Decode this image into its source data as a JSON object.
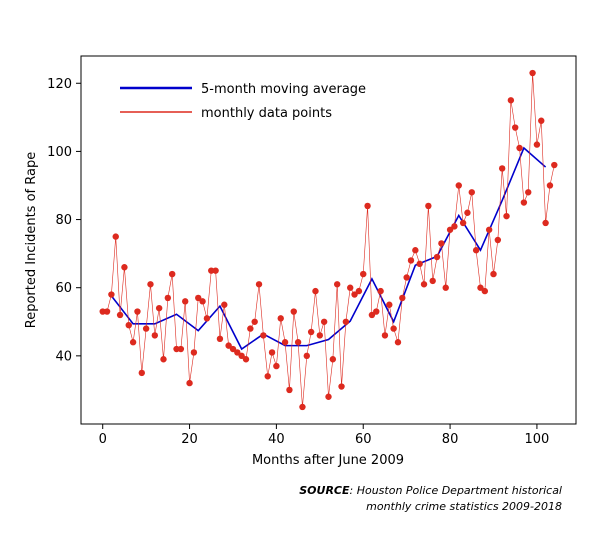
{
  "chart_data": {
    "type": "line",
    "xlabel": "Months after June 2009",
    "ylabel": "Reported Incidents of Rape",
    "xlim": [
      -5,
      109
    ],
    "ylim": [
      20,
      128
    ],
    "xticks": [
      0,
      20,
      40,
      60,
      80,
      100
    ],
    "yticks": [
      40,
      60,
      80,
      100,
      120
    ],
    "legend_position": "top-left",
    "series": [
      {
        "name": "5-month moving average",
        "color": "#0000cc",
        "x": [
          2,
          7,
          12,
          17,
          22,
          27,
          32,
          37,
          42,
          47,
          52,
          57,
          62,
          67,
          72,
          77,
          82,
          87,
          92,
          97,
          102
        ],
        "y": [
          57.6,
          49.4,
          49.4,
          52.2,
          47.4,
          54.6,
          42,
          46.4,
          43,
          43,
          44.8,
          50.2,
          62.6,
          50,
          66.6,
          69.2,
          81.2,
          71,
          85.6,
          101,
          95.4
        ]
      },
      {
        "name": "monthly data points",
        "color": "#dd2a1f",
        "x": [
          0,
          1,
          2,
          3,
          4,
          5,
          6,
          7,
          8,
          9,
          10,
          11,
          12,
          13,
          14,
          15,
          16,
          17,
          18,
          19,
          20,
          21,
          22,
          23,
          24,
          25,
          26,
          27,
          28,
          29,
          30,
          31,
          32,
          33,
          34,
          35,
          36,
          37,
          38,
          39,
          40,
          41,
          42,
          43,
          44,
          45,
          46,
          47,
          48,
          49,
          50,
          51,
          52,
          53,
          54,
          55,
          56,
          57,
          58,
          59,
          60,
          61,
          62,
          63,
          64,
          65,
          66,
          67,
          68,
          69,
          70,
          71,
          72,
          73,
          74,
          75,
          76,
          77,
          78,
          79,
          80,
          81,
          82,
          83,
          84,
          85,
          86,
          87,
          88,
          89,
          90,
          91,
          92,
          93,
          94,
          95,
          96,
          97,
          98,
          99,
          100,
          101,
          102,
          103,
          104
        ],
        "y": [
          53,
          53,
          58,
          75,
          52,
          66,
          49,
          44,
          53,
          35,
          48,
          61,
          46,
          54,
          39,
          57,
          64,
          42,
          42,
          56,
          32,
          41,
          57,
          56,
          51,
          65,
          65,
          45,
          55,
          43,
          42,
          41,
          40,
          39,
          48,
          50,
          61,
          46,
          34,
          41,
          37,
          51,
          44,
          30,
          53,
          44,
          25,
          40,
          47,
          59,
          46,
          50,
          28,
          39,
          61,
          31,
          50,
          60,
          58,
          59,
          64,
          84,
          52,
          53,
          59,
          46,
          55,
          48,
          44,
          57,
          63,
          68,
          71,
          67,
          61,
          84,
          62,
          69,
          73,
          60,
          77,
          78,
          90,
          79,
          82,
          88,
          71,
          60,
          59,
          77,
          64,
          74,
          95,
          81,
          115,
          107,
          101,
          85,
          88,
          123,
          102,
          109,
          79,
          90,
          96
        ]
      }
    ],
    "source": {
      "label": "SOURCE",
      "line1": ": Houston Police Department historical",
      "line2": "monthly crime statistics 2009-2018"
    }
  }
}
